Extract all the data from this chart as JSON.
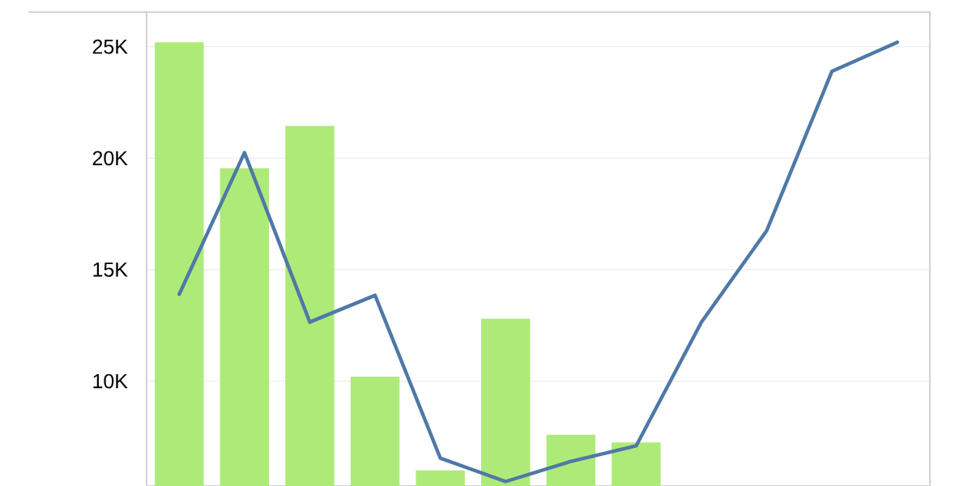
{
  "chart_data": {
    "type": "bar",
    "categories": [
      null,
      null,
      null,
      null,
      null,
      null,
      null,
      null,
      null,
      null,
      null,
      null
    ],
    "series": [
      {
        "color": "#aeea78",
        "values": [
          25200,
          19550,
          21450,
          10200,
          6000,
          12800,
          7600,
          7250,
          null,
          null,
          null,
          null
        ]
      },
      {
        "type": "line",
        "color": "#4e79a7",
        "values": [
          13900,
          20250,
          12650,
          13850,
          6550,
          5500,
          6400,
          7100,
          12650,
          16750,
          23900,
          25200
        ]
      }
    ],
    "ylim": [
      5300,
      26550
    ],
    "yticks": [
      {
        "value": 10000,
        "label": "10K"
      },
      {
        "value": 15000,
        "label": "15K"
      },
      {
        "value": 20000,
        "label": "20K"
      },
      {
        "value": 25000,
        "label": "25K"
      }
    ],
    "grid": "y",
    "tick_labels": "y"
  }
}
